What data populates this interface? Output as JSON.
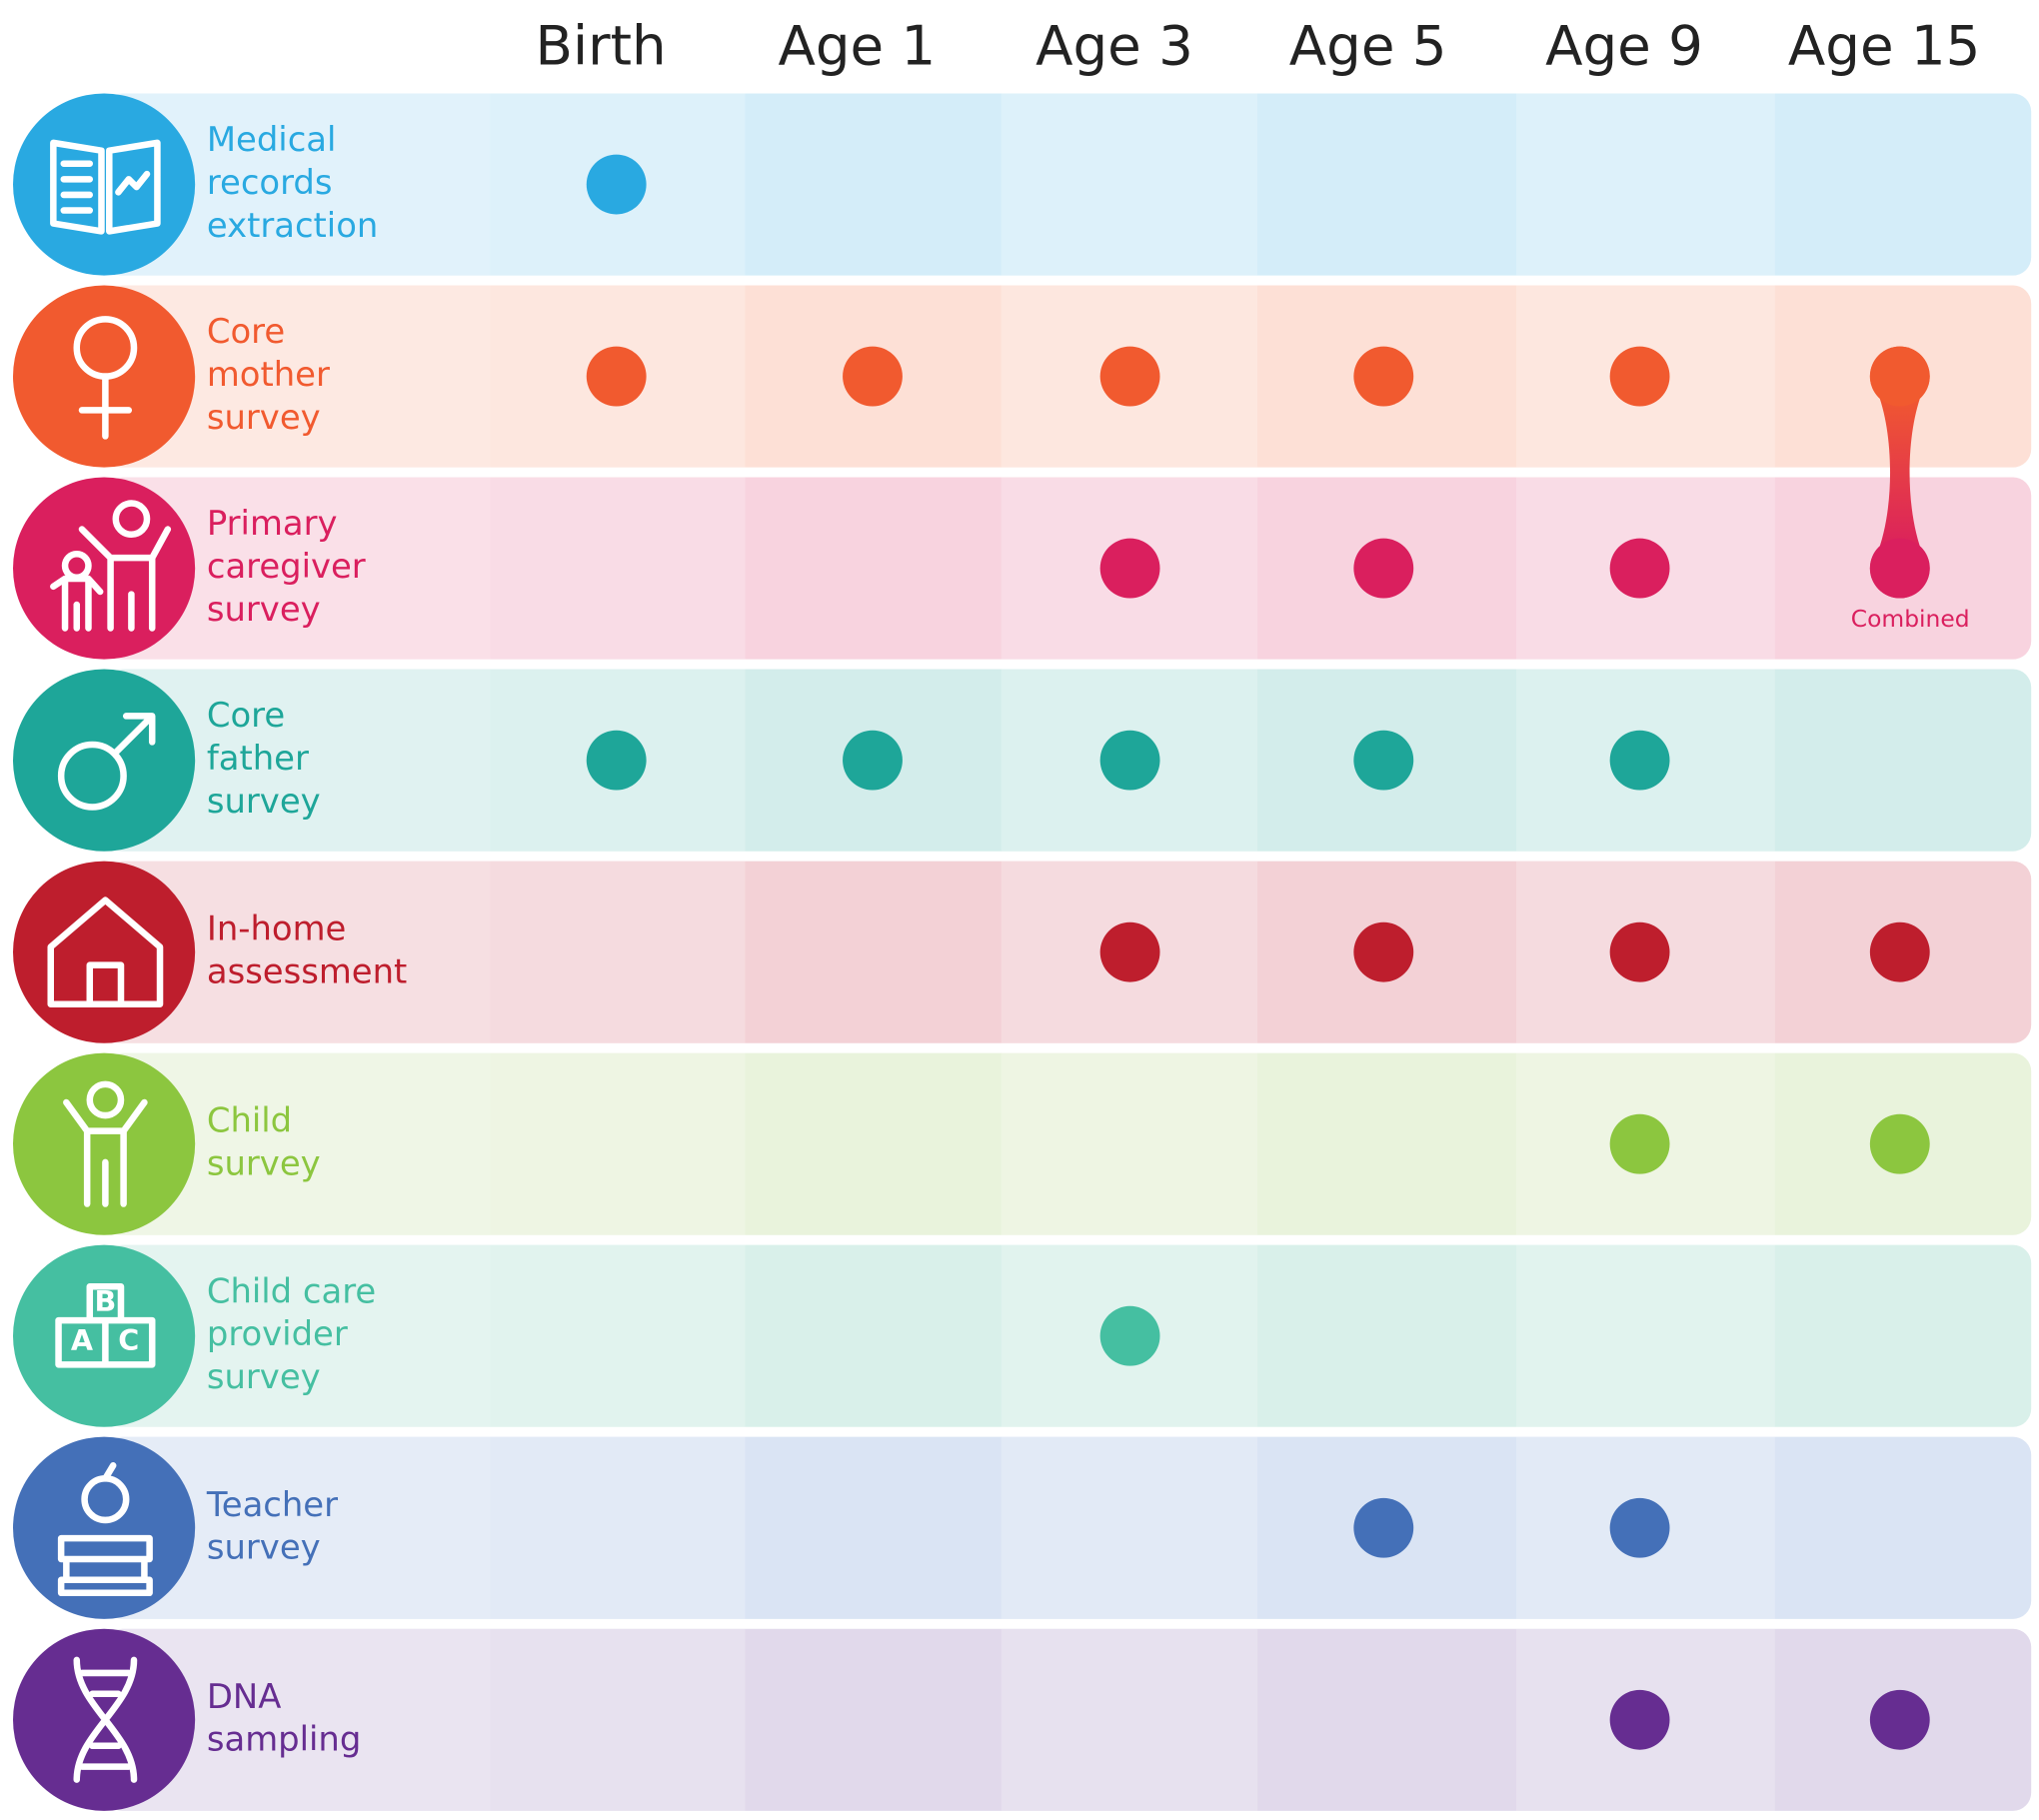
{
  "columns": [
    "Birth",
    "Age 1",
    "Age 3",
    "Age 5",
    "Age 9",
    "Age 15"
  ],
  "rows": [
    {
      "label": [
        "Medical",
        "records",
        "extraction"
      ],
      "color": "#29a9e1",
      "bg": "#d4edf9",
      "waves": [
        true,
        false,
        false,
        false,
        false,
        false
      ]
    },
    {
      "label": [
        "Core",
        "mother",
        "survey"
      ],
      "color": "#f15a2f",
      "bg": "#fde0d6",
      "waves": [
        true,
        true,
        true,
        true,
        true,
        true
      ]
    },
    {
      "label": [
        "Primary",
        "caregiver",
        "survey"
      ],
      "color": "#da1f5e",
      "bg": "#f8d3df",
      "waves": [
        false,
        false,
        true,
        true,
        true,
        true
      ]
    },
    {
      "label": [
        "Core",
        "father",
        "survey"
      ],
      "color": "#1ea699",
      "bg": "#d3edeb",
      "waves": [
        true,
        true,
        true,
        true,
        true,
        false
      ]
    },
    {
      "label": [
        "In-home",
        "assessment"
      ],
      "color": "#be1e2d",
      "bg": "#f3d1d6",
      "waves": [
        false,
        false,
        true,
        true,
        true,
        true
      ]
    },
    {
      "label": [
        "Child",
        "survey"
      ],
      "color": "#8cc63f",
      "bg": "#e9f3dc",
      "waves": [
        false,
        false,
        false,
        false,
        true,
        true
      ]
    },
    {
      "label": [
        "Child care",
        "provider",
        "survey"
      ],
      "color": "#45bfa1",
      "bg": "#d9f0ea",
      "icon_letters": [
        "B",
        "A",
        "C"
      ],
      "waves": [
        false,
        false,
        true,
        false,
        false,
        false
      ]
    },
    {
      "label": [
        "Teacher",
        "survey"
      ],
      "color": "#4470b8",
      "bg": "#dae4f4",
      "waves": [
        false,
        false,
        false,
        true,
        true,
        false
      ]
    },
    {
      "label": [
        "DNA",
        "sampling"
      ],
      "color": "#662d91",
      "bg": "#e1d9eb",
      "waves": [
        false,
        false,
        false,
        false,
        true,
        true
      ]
    }
  ],
  "annotation": "Combined"
}
